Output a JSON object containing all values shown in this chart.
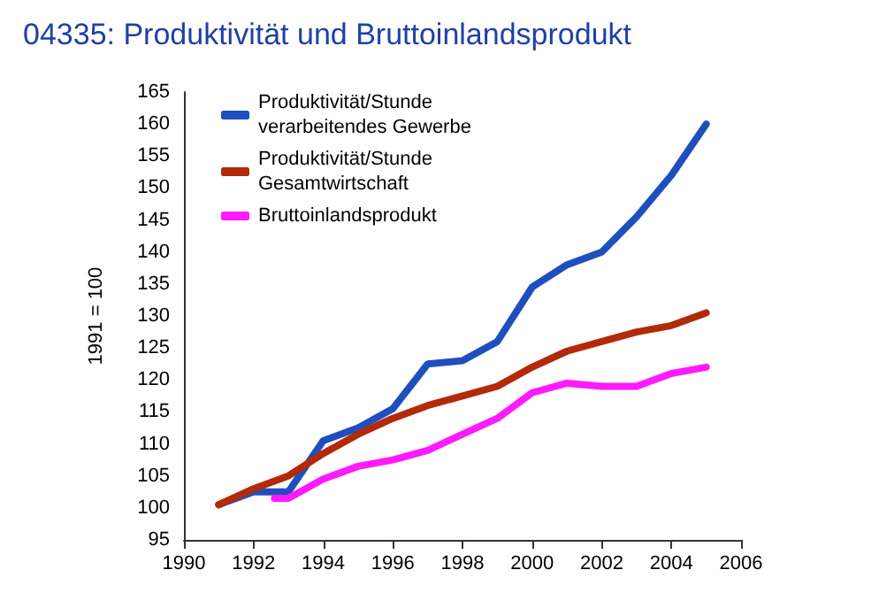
{
  "chart_data": {
    "type": "line",
    "title": "04335: Produktivität und Bruttoinlandsprodukt",
    "ylabel": "1991 = 100",
    "x": [
      1991,
      1992,
      1993,
      1994,
      1995,
      1996,
      1997,
      1998,
      1999,
      2000,
      2001,
      2002,
      2003,
      2004,
      2005
    ],
    "series": [
      {
        "name": "Produktivität/Stunde verarbeitendes Gewerbe",
        "color": "#1f4fbf",
        "values": [
          100.5,
          102.5,
          102.5,
          110.5,
          112.5,
          115.5,
          122.5,
          123,
          126,
          134.5,
          138,
          140,
          145.5,
          152,
          160
        ]
      },
      {
        "name": "Produktivität/Stunde Gesamtwirtschaft",
        "color": "#b22a0a",
        "values": [
          100.5,
          103,
          105,
          108.5,
          111.5,
          114,
          116,
          117.5,
          119,
          122,
          124.5,
          126,
          127.5,
          128.5,
          130.5
        ]
      },
      {
        "name": "Bruttoinlandsprodukt",
        "color": "#ff1aff",
        "x": [
          1992.6,
          1993,
          1994,
          1995,
          1996,
          1997,
          1998,
          1999,
          2000,
          2001,
          2002,
          2003,
          2004,
          2005
        ],
        "values": [
          101.5,
          101.5,
          104.5,
          106.5,
          107.5,
          109,
          111.5,
          114,
          118,
          119.5,
          119,
          119,
          121,
          122
        ]
      }
    ],
    "xlim": [
      1990,
      2006
    ],
    "xticks": [
      1990,
      1992,
      1994,
      1996,
      1998,
      2000,
      2002,
      2004,
      2006
    ],
    "ylim": [
      95,
      165
    ],
    "yticks": [
      95,
      100,
      105,
      110,
      115,
      120,
      125,
      130,
      135,
      140,
      145,
      150,
      155,
      160,
      165
    ],
    "grid": false,
    "legend": "top left",
    "marker": "none",
    "line_style": "solid"
  }
}
